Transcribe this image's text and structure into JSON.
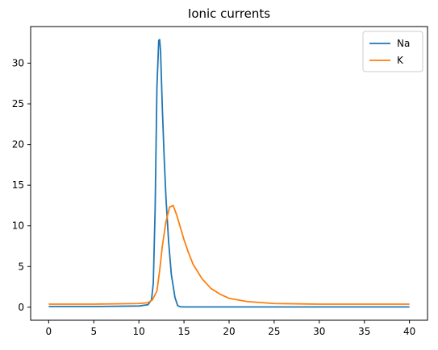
{
  "chart_data": {
    "type": "line",
    "title": "Ionic currents",
    "xlabel": "",
    "ylabel": "",
    "xlim": [
      -2,
      42
    ],
    "ylim": [
      -1.6,
      34.5
    ],
    "xticks": [
      0,
      5,
      10,
      15,
      20,
      25,
      30,
      35,
      40
    ],
    "xtick_labels": [
      "0",
      "5",
      "10",
      "15",
      "20",
      "25",
      "30",
      "35",
      "40"
    ],
    "yticks": [
      0,
      5,
      10,
      15,
      20,
      25,
      30
    ],
    "ytick_labels": [
      "0",
      "5",
      "10",
      "15",
      "20",
      "25",
      "30"
    ],
    "grid": false,
    "legend_position": "top-right",
    "series": [
      {
        "name": "Na",
        "color": "#1f77b4",
        "x": [
          0,
          5,
          10,
          11,
          11.4,
          11.6,
          11.8,
          12.0,
          12.2,
          12.3,
          12.4,
          12.6,
          12.8,
          13.0,
          13.3,
          13.6,
          14.0,
          14.3,
          14.6,
          15,
          20,
          30,
          40
        ],
        "y": [
          0.08,
          0.08,
          0.15,
          0.3,
          0.9,
          3.0,
          12.0,
          27.0,
          32.8,
          32.9,
          31.5,
          24.5,
          18.5,
          13.5,
          8.0,
          4.0,
          1.2,
          0.2,
          0.05,
          0.03,
          0.03,
          0.03,
          0.03
        ]
      },
      {
        "name": "K",
        "color": "#ff7f0e",
        "x": [
          0,
          5,
          10,
          11,
          11.5,
          12.0,
          12.3,
          12.6,
          13.0,
          13.4,
          13.8,
          14.2,
          14.6,
          15,
          15.5,
          16,
          17,
          18,
          19,
          20,
          22,
          25,
          30,
          35,
          40
        ],
        "y": [
          0.38,
          0.38,
          0.45,
          0.55,
          0.9,
          2.0,
          4.5,
          7.5,
          10.5,
          12.3,
          12.5,
          11.3,
          9.8,
          8.3,
          6.7,
          5.3,
          3.5,
          2.3,
          1.6,
          1.1,
          0.7,
          0.45,
          0.38,
          0.38,
          0.38
        ]
      }
    ]
  }
}
